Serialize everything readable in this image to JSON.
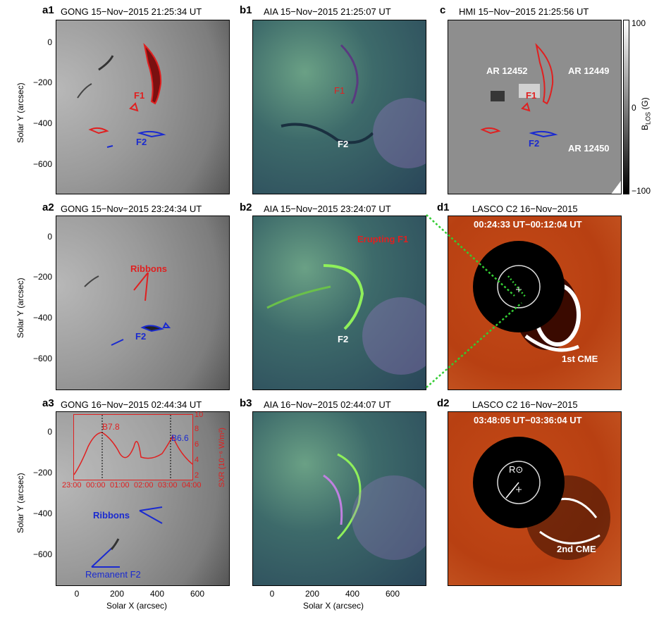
{
  "panels": {
    "a1": {
      "label": "a1",
      "title": "GONG 15−Nov−2015 21:25:34 UT",
      "f1": "F1",
      "f2": "F2"
    },
    "a2": {
      "label": "a2",
      "title": "GONG 15−Nov−2015 23:24:34 UT",
      "ribbons": "Ribbons",
      "f2": "F2"
    },
    "a3": {
      "label": "a3",
      "title": "GONG 16−Nov−2015 02:44:34 UT",
      "ribbons": "Ribbons",
      "remanent": "Remanent F2"
    },
    "b1": {
      "label": "b1",
      "title": "AIA 15−Nov−2015 21:25:07 UT",
      "f1": "F1",
      "f2": "F2"
    },
    "b2": {
      "label": "b2",
      "title": "AIA 15−Nov−2015 23:24:07 UT",
      "erupting": "Erupting F1",
      "f2": "F2"
    },
    "b3": {
      "label": "b3",
      "title": "AIA 16−Nov−2015 02:44:07 UT"
    },
    "c": {
      "label": "c",
      "title": "HMI 15−Nov−2015 21:25:56 UT",
      "ar1": "AR 12452",
      "ar2": "AR 12449",
      "ar3": "AR 12450",
      "f1": "F1",
      "f2": "F2",
      "colorbar": {
        "max": "100",
        "mid": "0",
        "min": "−100",
        "label": "B",
        "sub": "LOS",
        "unit": " (G)"
      }
    },
    "d1": {
      "label": "d1",
      "title": "LASCO C2  16−Nov−2015",
      "time": "00:24:33 UT−00:12:04 UT",
      "cme": "1st CME"
    },
    "d2": {
      "label": "d2",
      "title": "LASCO C2  16−Nov−2015",
      "time": "03:48:05 UT−03:36:04 UT",
      "cme": "2nd CME",
      "rsun": "R⊙"
    }
  },
  "axes": {
    "ylabel": "Solar Y (arcsec)",
    "xlabel": "Solar X (arcsec)",
    "yticks": [
      "0",
      "−200",
      "−400",
      "−600"
    ],
    "xticks": [
      "0",
      "200",
      "400",
      "600"
    ]
  },
  "inset": {
    "ylabel": "SXR (10⁻⁶ W/m²)",
    "yticks": [
      "10",
      "8",
      "6",
      "4",
      "2"
    ],
    "xticks": [
      "23:00",
      "00:00",
      "01:00",
      "02:00",
      "03:00",
      "04:00"
    ],
    "peak1": "B7.8",
    "peak2": "B6.6"
  },
  "colors": {
    "red": "#e02020",
    "blue": "#1a2ad0",
    "green_dots": "#33cc33"
  }
}
